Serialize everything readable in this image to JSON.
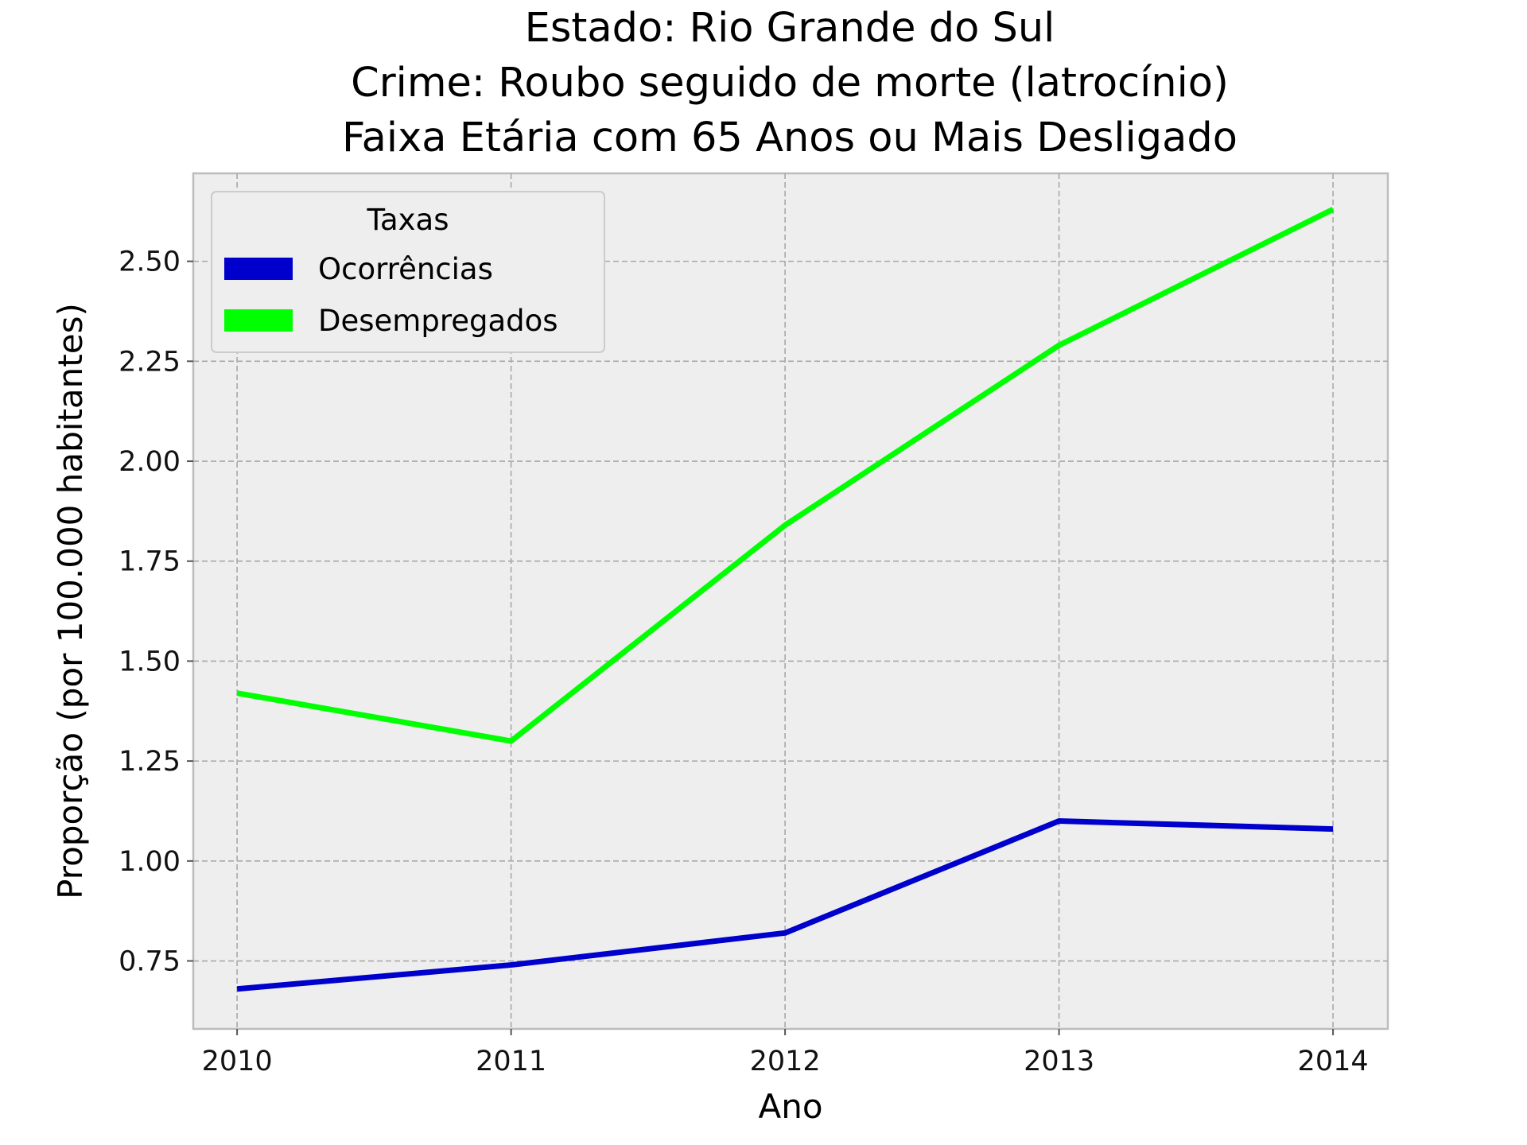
{
  "chart_data": {
    "type": "line",
    "title": [
      "Estado: Rio Grande do Sul",
      "Crime: Roubo seguido de morte (latrocínio)",
      "Faixa Etária com 65 Anos ou Mais   Desligado"
    ],
    "xlabel": "Ano",
    "ylabel": "Proporção (por 100.000 habitantes)",
    "x": [
      2010,
      2011,
      2012,
      2013,
      2014
    ],
    "x_tick_labels": [
      "2010",
      "2011",
      "2012",
      "2013",
      "2014"
    ],
    "y_ticks": [
      0.75,
      1.0,
      1.25,
      1.5,
      1.75,
      2.0,
      2.25,
      2.5
    ],
    "y_tick_labels": [
      "0.75",
      "1.00",
      "1.25",
      "1.50",
      "1.75",
      "2.00",
      "2.25",
      "2.50"
    ],
    "xlim": [
      2009.84,
      2014.2
    ],
    "ylim": [
      0.58,
      2.72
    ],
    "grid": true,
    "legend": {
      "title": "Taxas",
      "placement": "top-left"
    },
    "series": [
      {
        "name": "Ocorrências",
        "color": "#0000cc",
        "values": [
          0.68,
          0.74,
          0.82,
          1.1,
          1.08
        ]
      },
      {
        "name": "Desempregados",
        "color": "#00ff00",
        "values": [
          1.42,
          1.3,
          1.84,
          2.29,
          2.63
        ]
      }
    ]
  }
}
